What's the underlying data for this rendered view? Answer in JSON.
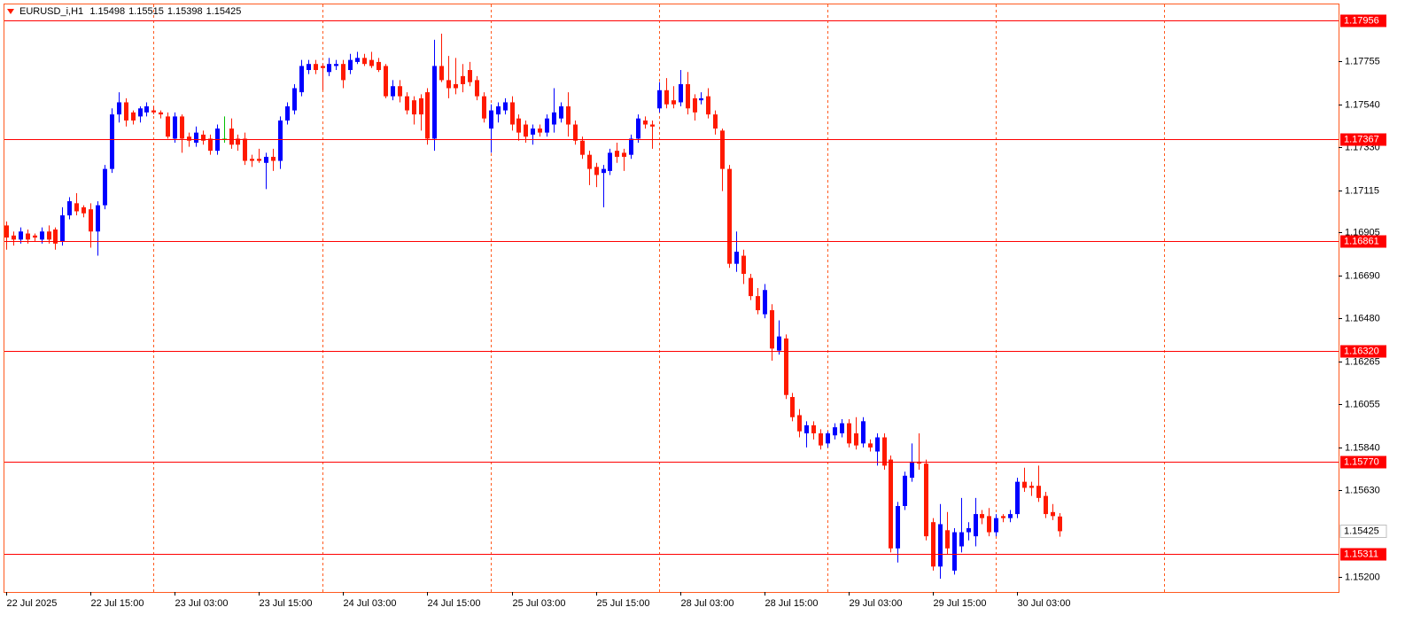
{
  "chart_data": {
    "type": "candlestick",
    "symbol": "EURUSD_i,H1",
    "up_color": "#0000ff",
    "down_color": "#ff1a00",
    "doji_color": "#00c000",
    "separator_color": "#ff5a1f",
    "level_color": "#ff0000",
    "ylim": [
      1.15124,
      1.18035
    ],
    "xlim": [
      -0.25,
      189.8
    ],
    "yticks": [
      1.17755,
      {
        "value": 1.1754,
        "label": "1.17540"
      },
      {
        "value": 1.1733,
        "label": "1.17330"
      },
      1.17115,
      1.16905,
      {
        "value": 1.1669,
        "label": "1.16690"
      },
      {
        "value": 1.1648,
        "label": "1.16480"
      },
      1.16265,
      1.16055,
      {
        "value": 1.1584,
        "label": "1.15840"
      },
      {
        "value": 1.1563,
        "label": "1.15630"
      },
      {
        "value": 1.152,
        "label": "1.15200"
      }
    ],
    "levels": [
      1.17956,
      1.17367,
      1.16861,
      {
        "value": 1.1632,
        "label": "1.16320"
      },
      {
        "value": 1.1577,
        "label": "1.15770"
      },
      1.15311
    ],
    "xticks": [
      {
        "value": 0,
        "label": "22 Jul 2025"
      },
      {
        "value": 12,
        "label": "22 Jul 15:00"
      },
      {
        "value": 24,
        "label": "23 Jul 03:00"
      },
      {
        "value": 36,
        "label": "23 Jul 15:00"
      },
      {
        "value": 48,
        "label": "24 Jul 03:00"
      },
      {
        "value": 60,
        "label": "24 Jul 15:00"
      },
      {
        "value": 72,
        "label": "25 Jul 03:00"
      },
      {
        "value": 84,
        "label": "25 Jul 15:00"
      },
      {
        "value": 96,
        "label": "28 Jul 03:00"
      },
      {
        "value": 108,
        "label": "28 Jul 15:00"
      },
      {
        "value": 120,
        "label": "29 Jul 03:00"
      },
      {
        "value": 132,
        "label": "29 Jul 15:00"
      },
      {
        "value": 144,
        "label": "30 Jul 03:00"
      }
    ],
    "period_separators": [
      21,
      45,
      69,
      93,
      117,
      141,
      165
    ],
    "candles": [
      [
        1.1694,
        1.1696,
        1.1682,
        1.1688
      ],
      [
        1.1689,
        1.1691,
        1.1684,
        1.1687
      ],
      [
        1.1687,
        1.1693,
        1.1685,
        1.1691
      ],
      [
        1.169,
        1.1692,
        1.1685,
        1.1687
      ],
      [
        1.1689,
        1.169,
        1.1686,
        1.1688
      ],
      [
        1.1687,
        1.1693,
        1.1685,
        1.1691
      ],
      [
        1.1691,
        1.1694,
        1.1685,
        1.1687
      ],
      [
        1.1692,
        1.1693,
        1.1682,
        1.1685
      ],
      [
        1.1686,
        1.1703,
        1.1684,
        1.1699
      ],
      [
        1.1699,
        1.1708,
        1.1697,
        1.1706
      ],
      [
        1.1705,
        1.171,
        1.1699,
        1.1701
      ],
      [
        1.1703,
        1.1704,
        1.1698,
        1.17
      ],
      [
        1.1702,
        1.1705,
        1.1683,
        1.1691
      ],
      [
        1.1691,
        1.1706,
        1.1679,
        1.1704
      ],
      [
        1.1704,
        1.1724,
        1.1702,
        1.1722
      ],
      [
        1.1722,
        1.1752,
        1.172,
        1.1749
      ],
      [
        1.1749,
        1.176,
        1.1745,
        1.1755
      ],
      [
        1.1755,
        1.1757,
        1.1743,
        1.1746
      ],
      [
        1.175,
        1.1751,
        1.1744,
        1.1746
      ],
      [
        1.1748,
        1.1753,
        1.1745,
        1.1752
      ],
      [
        1.175,
        1.1755,
        1.1748,
        1.1753
      ],
      [
        1.1751,
        1.1753,
        1.1749,
        1.175
      ],
      [
        1.175,
        1.1751,
        1.1747,
        1.1749
      ],
      [
        1.1748,
        1.175,
        1.1737,
        1.1738
      ],
      [
        1.1737,
        1.175,
        1.1735,
        1.1748
      ],
      [
        1.1748,
        1.1749,
        1.173,
        1.1737
      ],
      [
        1.1738,
        1.174,
        1.1733,
        1.1736
      ],
      [
        1.1735,
        1.1743,
        1.1733,
        1.174
      ],
      [
        1.1739,
        1.1741,
        1.1734,
        1.1736
      ],
      [
        1.1737,
        1.1739,
        1.1729,
        1.1731
      ],
      [
        1.1731,
        1.1744,
        1.1729,
        1.1742
      ],
      [
        1.1737,
        1.1748,
        1.1735,
        1.1737
      ],
      [
        1.1742,
        1.1747,
        1.1732,
        1.1734
      ],
      [
        1.1737,
        1.1739,
        1.1731,
        1.1734
      ],
      [
        1.1737,
        1.174,
        1.1724,
        1.1726
      ],
      [
        1.1727,
        1.1729,
        1.1723,
        1.1726
      ],
      [
        1.1727,
        1.1732,
        1.1725,
        1.1726
      ],
      [
        1.1725,
        1.173,
        1.1712,
        1.1728
      ],
      [
        1.1728,
        1.1732,
        1.1721,
        1.1726
      ],
      [
        1.1726,
        1.1748,
        1.1722,
        1.1746
      ],
      [
        1.1746,
        1.1755,
        1.1744,
        1.1753
      ],
      [
        1.1751,
        1.1764,
        1.1749,
        1.1762
      ],
      [
        1.176,
        1.1776,
        1.1758,
        1.1773
      ],
      [
        1.1771,
        1.1776,
        1.1769,
        1.1774
      ],
      [
        1.1774,
        1.1776,
        1.1769,
        1.1771
      ],
      [
        1.1773,
        1.1774,
        1.1761,
        1.1772
      ],
      [
        1.177,
        1.1777,
        1.1768,
        1.1774
      ],
      [
        1.1773,
        1.1776,
        1.1771,
        1.1774
      ],
      [
        1.1774,
        1.1776,
        1.1762,
        1.1766
      ],
      [
        1.1771,
        1.1779,
        1.1769,
        1.1776
      ],
      [
        1.1775,
        1.178,
        1.1774,
        1.1777
      ],
      [
        1.1777,
        1.1779,
        1.1773,
        1.1774
      ],
      [
        1.1776,
        1.178,
        1.1772,
        1.1773
      ],
      [
        1.1775,
        1.1777,
        1.177,
        1.1771
      ],
      [
        1.1773,
        1.1774,
        1.1757,
        1.1758
      ],
      [
        1.1758,
        1.1766,
        1.1756,
        1.1763
      ],
      [
        1.1763,
        1.1766,
        1.1755,
        1.1758
      ],
      [
        1.1758,
        1.176,
        1.1749,
        1.1751
      ],
      [
        1.1756,
        1.1758,
        1.1744,
        1.1749
      ],
      [
        1.1757,
        1.1759,
        1.1741,
        1.1749
      ],
      [
        1.176,
        1.1762,
        1.1734,
        1.1737
      ],
      [
        1.1737,
        1.1786,
        1.1731,
        1.1773
      ],
      [
        1.1773,
        1.1789,
        1.1765,
        1.1766
      ],
      [
        1.1766,
        1.1778,
        1.1757,
        1.1762
      ],
      [
        1.1764,
        1.1777,
        1.1759,
        1.1762
      ],
      [
        1.1768,
        1.1774,
        1.176,
        1.1764
      ],
      [
        1.1771,
        1.1775,
        1.1763,
        1.1765
      ],
      [
        1.1766,
        1.1768,
        1.1756,
        1.1758
      ],
      [
        1.1758,
        1.176,
        1.1745,
        1.1747
      ],
      [
        1.1742,
        1.1754,
        1.173,
        1.1751
      ],
      [
        1.1749,
        1.1755,
        1.1745,
        1.1753
      ],
      [
        1.1751,
        1.1757,
        1.1749,
        1.1755
      ],
      [
        1.1755,
        1.1758,
        1.1741,
        1.1744
      ],
      [
        1.1747,
        1.1749,
        1.1736,
        1.174
      ],
      [
        1.1744,
        1.1746,
        1.1735,
        1.1738
      ],
      [
        1.1739,
        1.1744,
        1.1734,
        1.1742
      ],
      [
        1.1742,
        1.1744,
        1.1738,
        1.174
      ],
      [
        1.174,
        1.1749,
        1.1738,
        1.1747
      ],
      [
        1.1744,
        1.1762,
        1.174,
        1.175
      ],
      [
        1.1747,
        1.1755,
        1.1745,
        1.1753
      ],
      [
        1.1753,
        1.176,
        1.1738,
        1.1744
      ],
      [
        1.1744,
        1.1746,
        1.1734,
        1.1736
      ],
      [
        1.1736,
        1.1738,
        1.1727,
        1.1729
      ],
      [
        1.1729,
        1.1731,
        1.1714,
        1.1722
      ],
      [
        1.1723,
        1.1725,
        1.1713,
        1.1719
      ],
      [
        1.172,
        1.1724,
        1.1703,
        1.1722
      ],
      [
        1.1721,
        1.1732,
        1.1719,
        1.173
      ],
      [
        1.1731,
        1.1735,
        1.1725,
        1.1728
      ],
      [
        1.173,
        1.1732,
        1.1721,
        1.1728
      ],
      [
        1.1729,
        1.1739,
        1.1727,
        1.1737
      ],
      [
        1.1737,
        1.1749,
        1.1735,
        1.1747
      ],
      [
        1.1746,
        1.1748,
        1.1742,
        1.1744
      ],
      [
        1.1744,
        1.1746,
        1.1732,
        1.1743
      ],
      [
        1.1752,
        1.1765,
        1.175,
        1.1761
      ],
      [
        1.1761,
        1.1767,
        1.1752,
        1.1754
      ],
      [
        1.1756,
        1.1763,
        1.1752,
        1.1754
      ],
      [
        1.1755,
        1.1771,
        1.1753,
        1.1764
      ],
      [
        1.1764,
        1.177,
        1.1749,
        1.1752
      ],
      [
        1.1757,
        1.1759,
        1.1746,
        1.175
      ],
      [
        1.1756,
        1.176,
        1.1754,
        1.1757
      ],
      [
        1.1758,
        1.1762,
        1.1747,
        1.1749
      ],
      [
        1.1749,
        1.1751,
        1.1739,
        1.1742
      ],
      [
        1.1741,
        1.1742,
        1.1711,
        1.1722
      ],
      [
        1.1722,
        1.1724,
        1.1673,
        1.1675
      ],
      [
        1.1675,
        1.1691,
        1.1671,
        1.1681
      ],
      [
        1.1679,
        1.1682,
        1.1665,
        1.167
      ],
      [
        1.1668,
        1.167,
        1.1657,
        1.1659
      ],
      [
        1.1659,
        1.1663,
        1.165,
        1.1652
      ],
      [
        1.165,
        1.1665,
        1.1648,
        1.1662
      ],
      [
        1.1652,
        1.1655,
        1.1627,
        1.1633
      ],
      [
        1.1632,
        1.1647,
        1.163,
        1.1639
      ],
      [
        1.1638,
        1.164,
        1.1608,
        1.161
      ],
      [
        1.1609,
        1.1611,
        1.1597,
        1.1599
      ],
      [
        1.16,
        1.1603,
        1.1589,
        1.1592
      ],
      [
        1.1591,
        1.1597,
        1.1584,
        1.1595
      ],
      [
        1.1595,
        1.1597,
        1.1588,
        1.1591
      ],
      [
        1.1591,
        1.1593,
        1.1583,
        1.1585
      ],
      [
        1.1586,
        1.1592,
        1.1584,
        1.1591
      ],
      [
        1.159,
        1.1596,
        1.1588,
        1.1594
      ],
      [
        1.1591,
        1.1598,
        1.1589,
        1.1596
      ],
      [
        1.1596,
        1.1598,
        1.1584,
        1.1586
      ],
      [
        1.1591,
        1.1599,
        1.1583,
        1.1585
      ],
      [
        1.1586,
        1.1599,
        1.1584,
        1.1597
      ],
      [
        1.1586,
        1.1588,
        1.1582,
        1.1584
      ],
      [
        1.1582,
        1.1591,
        1.1575,
        1.1589
      ],
      [
        1.1589,
        1.1591,
        1.1573,
        1.1575
      ],
      [
        1.1578,
        1.158,
        1.1532,
        1.1534
      ],
      [
        1.1534,
        1.1557,
        1.1527,
        1.1555
      ],
      [
        1.1555,
        1.1572,
        1.1553,
        1.157
      ],
      [
        1.1569,
        1.1586,
        1.1567,
        1.1577
      ],
      [
        1.1577,
        1.1591,
        1.1573,
        1.1576
      ],
      [
        1.1576,
        1.1578,
        1.1538,
        1.154
      ],
      [
        1.1547,
        1.1549,
        1.1523,
        1.1525
      ],
      [
        1.1525,
        1.1556,
        1.1519,
        1.1546
      ],
      [
        1.1543,
        1.1552,
        1.1531,
        1.1534
      ],
      [
        1.1523,
        1.1544,
        1.1521,
        1.1542
      ],
      [
        1.1535,
        1.1559,
        1.1532,
        1.1542
      ],
      [
        1.1542,
        1.1547,
        1.1538,
        1.1544
      ],
      [
        1.154,
        1.1559,
        1.1535,
        1.1551
      ],
      [
        1.1551,
        1.1553,
        1.1546,
        1.1549
      ],
      [
        1.155,
        1.1554,
        1.154,
        1.1542
      ],
      [
        1.1542,
        1.1551,
        1.154,
        1.1549
      ],
      [
        1.155,
        1.1551,
        1.1547,
        1.1549
      ],
      [
        1.1549,
        1.1553,
        1.1547,
        1.1551
      ],
      [
        1.1551,
        1.1569,
        1.1549,
        1.1567
      ],
      [
        1.1567,
        1.1574,
        1.1562,
        1.1564
      ],
      [
        1.1565,
        1.1567,
        1.156,
        1.1564
      ],
      [
        1.1565,
        1.1575,
        1.1557,
        1.1559
      ],
      [
        1.156,
        1.1562,
        1.1549,
        1.1551
      ],
      [
        1.1552,
        1.1556,
        1.1548,
        1.155
      ],
      [
        1.15498,
        1.15515,
        1.15398,
        1.15425
      ]
    ]
  }
}
